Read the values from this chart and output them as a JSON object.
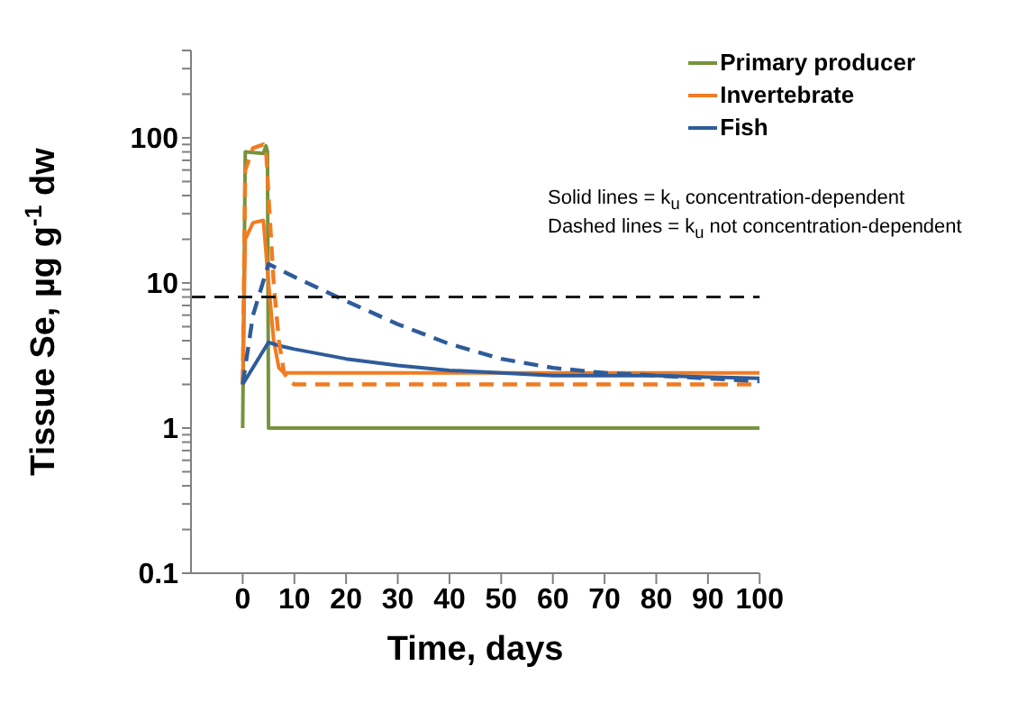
{
  "chart_data": {
    "type": "line",
    "xlabel": "Time, days",
    "ylabel": "Tissue Se, µg g$^{-1}$ dw",
    "log": "y",
    "grid": false,
    "legend": "top right",
    "marker": "none",
    "xlim": [
      -10,
      100
    ],
    "xticks": [
      0,
      10,
      20,
      30,
      40,
      50,
      60,
      70,
      80,
      90,
      100
    ],
    "ylim": [
      0.1,
      400
    ],
    "yticks": [
      0.1,
      {
        "value": 0.2,
        "label": null
      },
      {
        "value": 0.3,
        "label": null
      },
      {
        "value": 0.4,
        "label": null
      },
      {
        "value": 0.5,
        "label": null
      },
      {
        "value": 0.6,
        "label": null
      },
      {
        "value": 0.7,
        "label": null
      },
      {
        "value": 0.8,
        "label": null
      },
      {
        "value": 0.9,
        "label": null
      },
      1,
      {
        "value": 2,
        "label": null
      },
      {
        "value": 3,
        "label": null
      },
      {
        "value": 4,
        "label": null
      },
      {
        "value": 5,
        "label": null
      },
      {
        "value": 6,
        "label": null
      },
      {
        "value": 7,
        "label": null
      },
      {
        "value": 8,
        "label": null
      },
      {
        "value": 9,
        "label": null
      },
      10,
      {
        "value": 20,
        "label": null
      },
      {
        "value": 30,
        "label": null
      },
      {
        "value": 40,
        "label": null
      },
      {
        "value": 50,
        "label": null
      },
      {
        "value": 60,
        "label": null
      },
      {
        "value": 70,
        "label": null
      },
      {
        "value": 80,
        "label": null
      },
      {
        "value": 90,
        "label": null
      },
      100,
      {
        "value": 200,
        "label": null
      },
      {
        "value": 300,
        "label": null
      },
      {
        "value": 400,
        "label": null
      }
    ],
    "ref_lines": [
      {
        "axis": "y",
        "value": 8,
        "color": "#1a1a1a",
        "line_style": "dashed"
      }
    ],
    "annotations": [
      "Solid lines = k$_{u}$ concentration-dependent",
      "Dashed lines = k$_{u}$ not concentration-dependent"
    ],
    "series": [
      {
        "name": "Primary producer",
        "color": "#77933c",
        "line_style": "solid",
        "x": [
          0,
          0.5,
          4,
          4.5,
          4.8,
          5,
          100
        ],
        "values": [
          1,
          80,
          78,
          88,
          80,
          1,
          1
        ]
      },
      {
        "name": "Invertebrate",
        "color": "#f07c22",
        "line_style": "solid",
        "x": [
          0,
          0.5,
          2,
          4,
          5,
          6,
          7,
          8,
          100
        ],
        "values": [
          2,
          20,
          26,
          27,
          10,
          4,
          2.6,
          2.4,
          2.4
        ]
      },
      {
        "name": "Fish",
        "color": "#2e5c9a",
        "line_style": "solid",
        "x": [
          0,
          5,
          7,
          10,
          20,
          30,
          40,
          50,
          60,
          80,
          100
        ],
        "values": [
          2,
          3.9,
          3.7,
          3.5,
          3,
          2.7,
          2.5,
          2.4,
          2.3,
          2.3,
          2.2
        ]
      },
      {
        "color": "#f07c22",
        "line_style": "dashed",
        "x": [
          0,
          0.5,
          2,
          4,
          4.5,
          5,
          6,
          7,
          8,
          9,
          10,
          100
        ],
        "values": [
          2,
          60,
          85,
          90,
          85,
          40,
          10,
          4,
          2.4,
          2.1,
          2,
          2
        ]
      },
      {
        "color": "#2e5c9a",
        "line_style": "dashed",
        "x": [
          0,
          2,
          5,
          10,
          20,
          30,
          40,
          50,
          60,
          70,
          80,
          90,
          100
        ],
        "values": [
          2,
          6,
          13.5,
          11,
          7.5,
          5.2,
          3.8,
          3,
          2.6,
          2.4,
          2.3,
          2.2,
          2.1
        ]
      }
    ]
  }
}
